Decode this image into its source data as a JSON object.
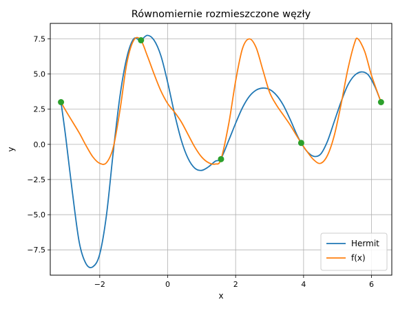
{
  "chart_data": {
    "type": "line",
    "title": "Równomiernie rozmieszczone węzły",
    "xlabel": "x",
    "ylabel": "y",
    "xlim": [
      -3.456,
      6.597
    ],
    "ylim": [
      -9.3,
      8.6
    ],
    "xticks": [
      -2,
      0,
      2,
      4,
      6
    ],
    "xtick_labels": [
      "−2",
      "0",
      "2",
      "4",
      "6"
    ],
    "yticks": [
      -7.5,
      -5.0,
      -2.5,
      0.0,
      2.5,
      5.0,
      7.5
    ],
    "ytick_labels": [
      "−7.5",
      "−5.0",
      "−2.5",
      "0.0",
      "2.5",
      "5.0",
      "7.5"
    ],
    "grid": true,
    "legend_position": "lower right",
    "series": [
      {
        "name": "Hermit",
        "color": "#1f77b4",
        "x": [
          -3.14,
          -3.0,
          -2.8,
          -2.6,
          -2.4,
          -2.2,
          -2.0,
          -1.8,
          -1.6,
          -1.4,
          -1.2,
          -1.0,
          -0.8,
          -0.6,
          -0.4,
          -0.2,
          0.0,
          0.2,
          0.4,
          0.6,
          0.8,
          1.0,
          1.2,
          1.4,
          1.57,
          1.8,
          2.0,
          2.2,
          2.4,
          2.6,
          2.8,
          3.0,
          3.2,
          3.4,
          3.6,
          3.8,
          3.93,
          4.1,
          4.3,
          4.5,
          4.7,
          4.9,
          5.1,
          5.3,
          5.5,
          5.7,
          5.9,
          6.1,
          6.28
        ],
        "y": [
          3.0,
          0.5,
          -3.5,
          -7.0,
          -8.5,
          -8.7,
          -7.8,
          -5.0,
          -0.5,
          3.5,
          6.2,
          7.5,
          7.4,
          7.75,
          7.4,
          6.3,
          4.4,
          2.2,
          0.3,
          -1.0,
          -1.7,
          -1.85,
          -1.6,
          -1.2,
          -1.0,
          0.3,
          1.5,
          2.6,
          3.4,
          3.85,
          4.0,
          3.9,
          3.5,
          2.8,
          1.8,
          0.7,
          0.1,
          -0.5,
          -0.85,
          -0.7,
          0.2,
          1.6,
          3.0,
          4.2,
          4.9,
          5.15,
          4.95,
          4.1,
          3.0
        ]
      },
      {
        "name": "f(x)",
        "color": "#ff7f0e",
        "x": [
          -3.14,
          -3.0,
          -2.8,
          -2.6,
          -2.4,
          -2.2,
          -2.0,
          -1.8,
          -1.6,
          -1.4,
          -1.2,
          -1.0,
          -0.8,
          -0.6,
          -0.4,
          -0.2,
          0.0,
          0.2,
          0.4,
          0.6,
          0.8,
          1.0,
          1.2,
          1.4,
          1.57,
          1.8,
          2.0,
          2.2,
          2.4,
          2.6,
          2.8,
          3.0,
          3.2,
          3.4,
          3.6,
          3.8,
          3.93,
          4.1,
          4.3,
          4.5,
          4.7,
          4.9,
          5.1,
          5.3,
          5.5,
          5.6,
          5.8,
          6.0,
          6.28
        ],
        "y": [
          3.0,
          2.4,
          1.6,
          0.8,
          -0.1,
          -0.9,
          -1.35,
          -1.3,
          -0.2,
          2.5,
          5.8,
          7.4,
          7.45,
          6.3,
          5.0,
          3.8,
          2.9,
          2.3,
          1.6,
          0.7,
          -0.2,
          -0.9,
          -1.3,
          -1.4,
          -1.05,
          1.5,
          4.5,
          6.8,
          7.5,
          6.9,
          5.3,
          3.7,
          2.8,
          2.1,
          1.4,
          0.6,
          0.1,
          -0.5,
          -1.1,
          -1.35,
          -0.8,
          0.6,
          2.8,
          5.3,
          7.2,
          7.5,
          6.6,
          4.9,
          3.0
        ]
      },
      {
        "name": "",
        "color": "#2ca02c",
        "mode": "markers",
        "x": [
          -3.14,
          -0.785,
          1.57,
          3.93,
          6.28
        ],
        "y": [
          3.0,
          7.4,
          -1.05,
          0.1,
          3.0
        ]
      }
    ]
  }
}
